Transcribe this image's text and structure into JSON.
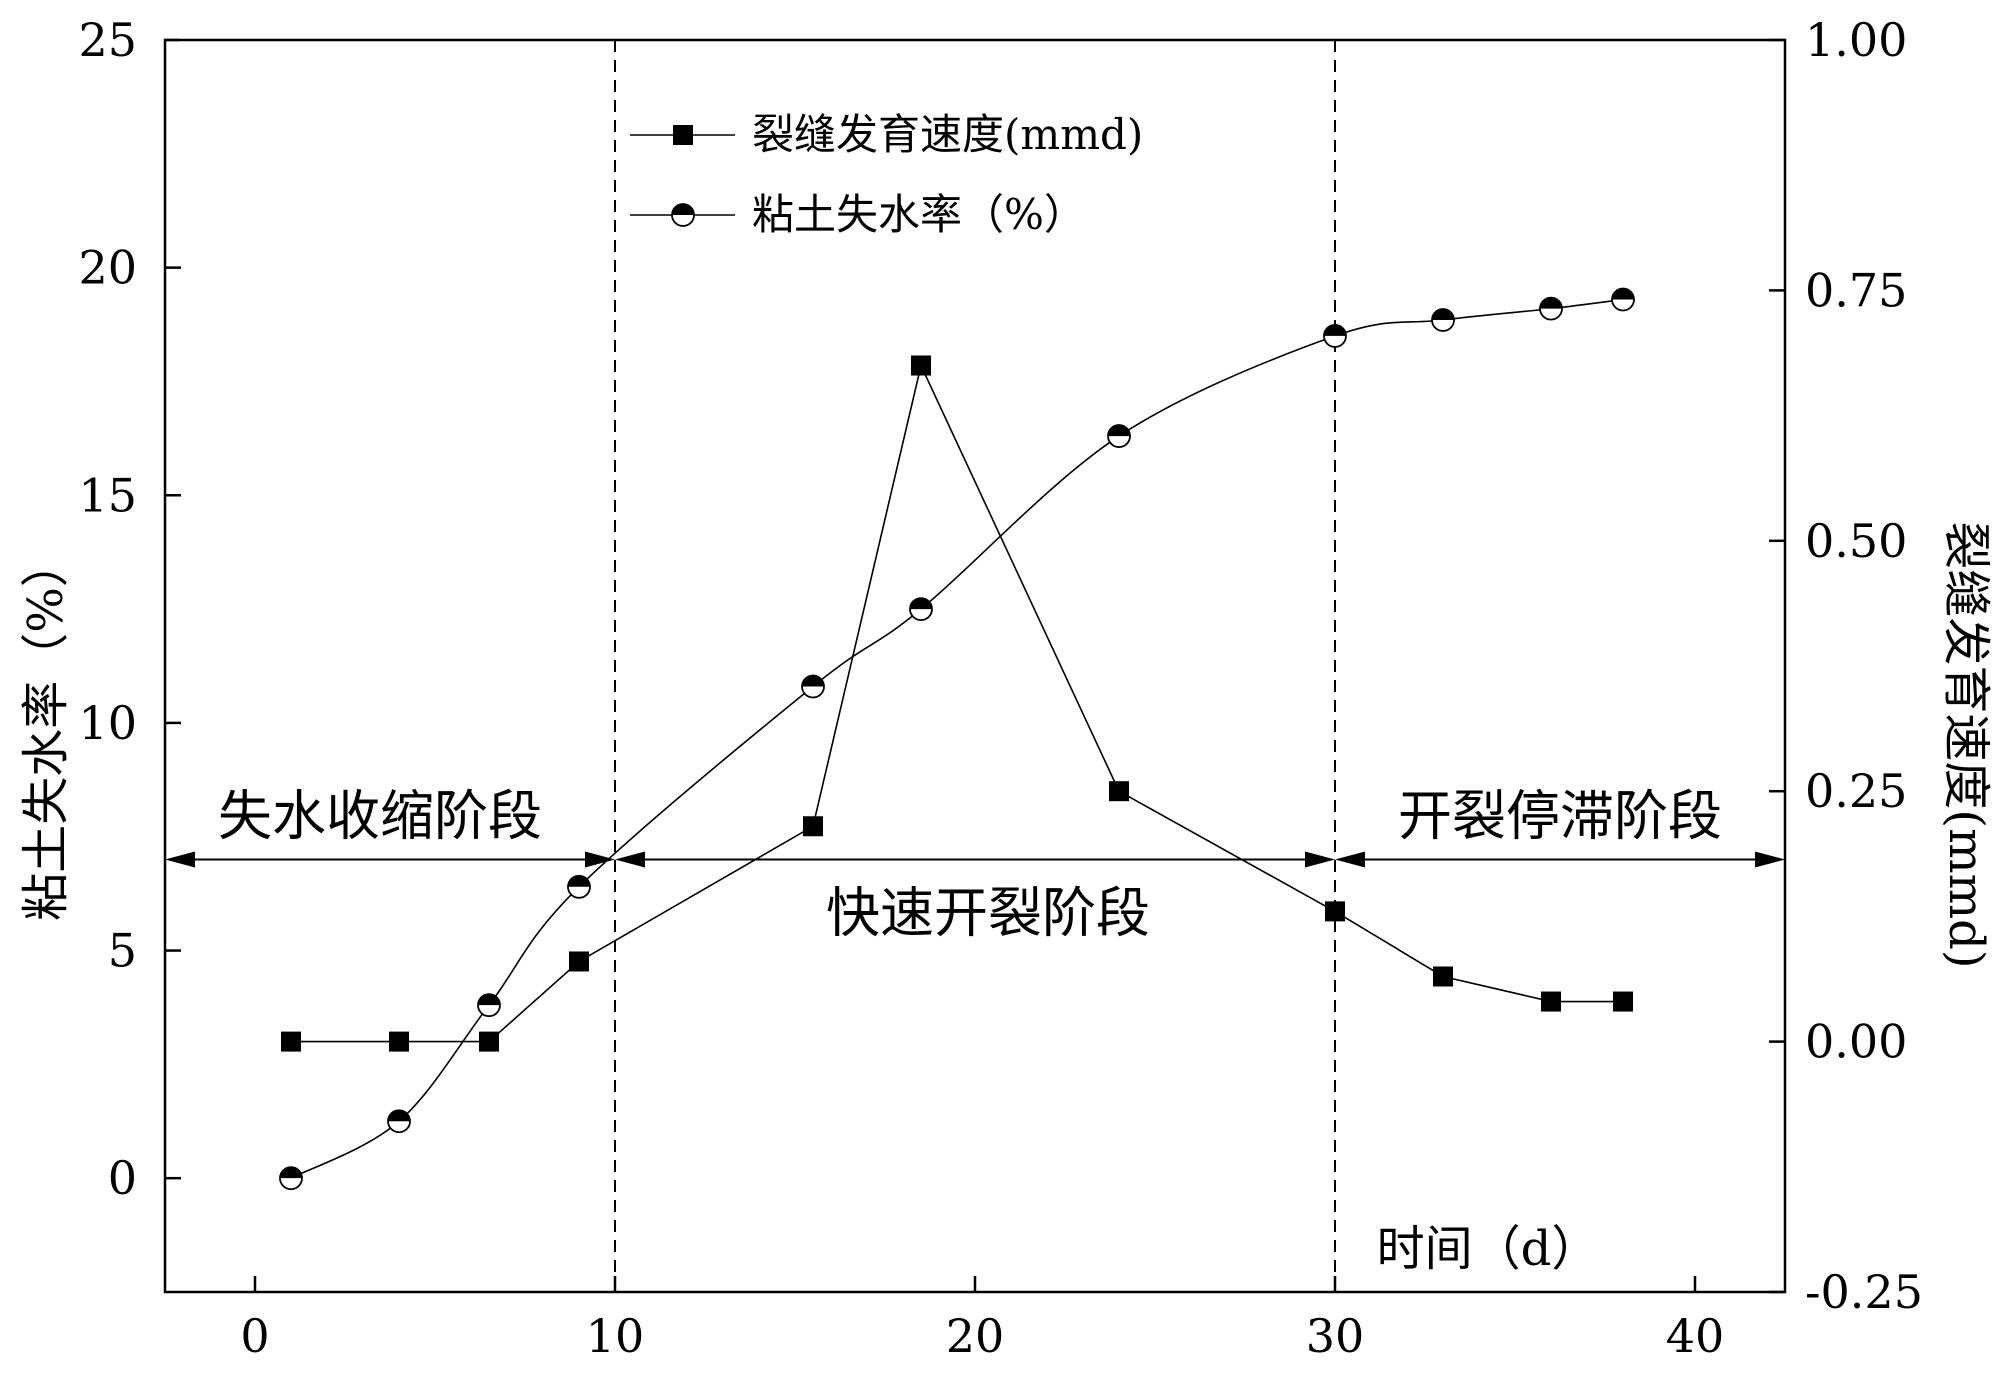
{
  "chart_data": {
    "type": "line",
    "x_axis": {
      "label": "时间（d）",
      "range": [
        -2.5,
        42.5
      ],
      "ticks": [
        0,
        10,
        20,
        30,
        40
      ]
    },
    "y_left": {
      "label": "粘土失水率（%）",
      "range": [
        -2.5,
        25
      ],
      "ticks": [
        0,
        5,
        10,
        15,
        20,
        25
      ]
    },
    "y_right": {
      "label": "裂缝发育速度(mmd)",
      "range": [
        -0.25,
        1.0
      ],
      "ticks": [
        -0.25,
        0.0,
        0.25,
        0.5,
        0.75,
        1.0
      ],
      "tick_labels": [
        "-0.25",
        "0.00",
        "0.25",
        "0.50",
        "0.75",
        "1.00"
      ]
    },
    "series": [
      {
        "name": "裂缝发育速度(mmd)",
        "axis": "right",
        "marker": "filled-square",
        "line": "straight",
        "x": [
          1,
          4,
          6.5,
          9,
          15.5,
          18.5,
          24,
          30,
          33,
          36,
          38
        ],
        "y": [
          0.0,
          0.0,
          0.0,
          0.08,
          0.215,
          0.675,
          0.25,
          0.13,
          0.065,
          0.04,
          0.04
        ]
      },
      {
        "name": "粘土失水率（%）",
        "axis": "left",
        "marker": "half-filled-circle",
        "line": "smooth",
        "x": [
          1,
          4,
          6.5,
          9,
          15.5,
          18.5,
          24,
          30,
          33,
          36,
          38
        ],
        "y": [
          0.0,
          1.25,
          3.8,
          6.4,
          10.8,
          12.5,
          16.3,
          18.5,
          18.85,
          19.1,
          19.3
        ]
      }
    ],
    "stage_boundaries_x": [
      10,
      30
    ],
    "stage_arrow_y_left": 7.0,
    "stages": [
      {
        "label": "失水收缩阶段"
      },
      {
        "label": "快速开裂阶段"
      },
      {
        "label": "开裂停滞阶段"
      }
    ],
    "legend_position": "top-center",
    "grid": false
  }
}
